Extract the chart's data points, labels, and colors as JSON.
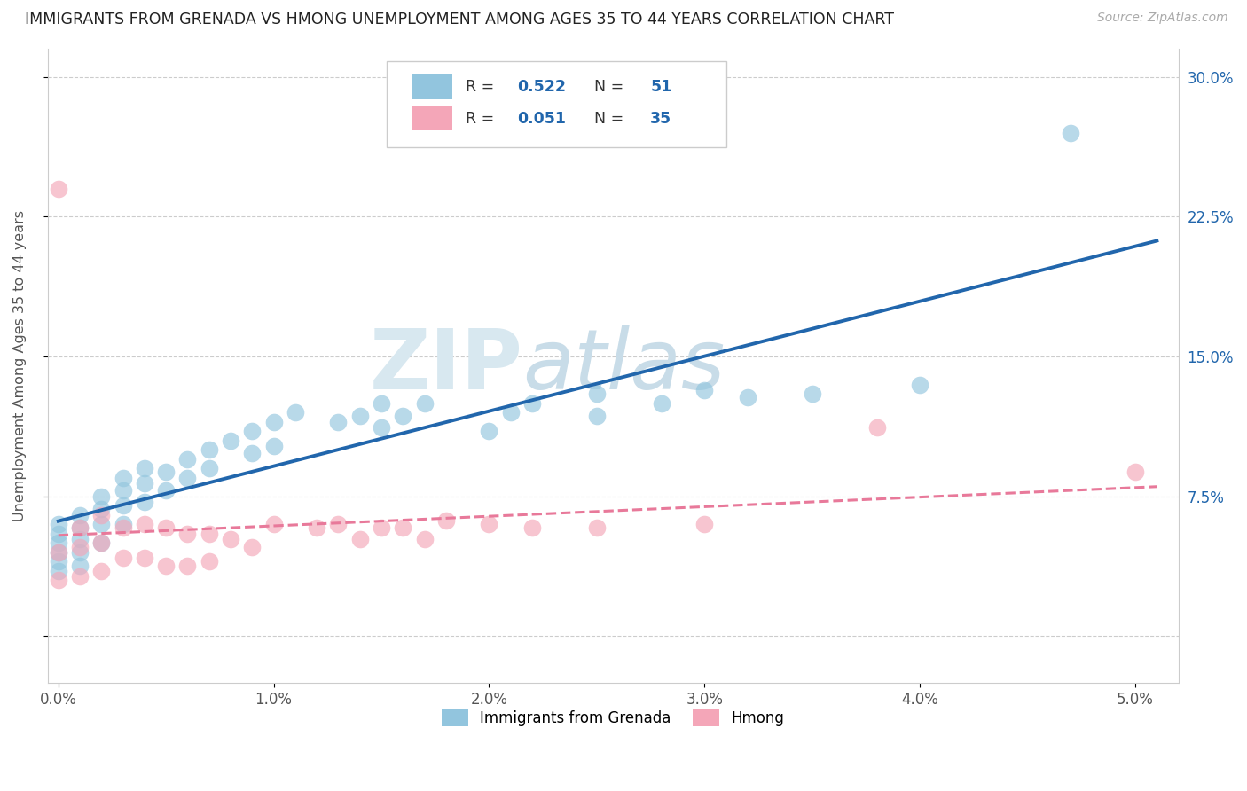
{
  "title": "IMMIGRANTS FROM GRENADA VS HMONG UNEMPLOYMENT AMONG AGES 35 TO 44 YEARS CORRELATION CHART",
  "source": "Source: ZipAtlas.com",
  "ylabel": "Unemployment Among Ages 35 to 44 years",
  "xlim": [
    -0.0005,
    0.052
  ],
  "ylim": [
    -0.025,
    0.315
  ],
  "xticks": [
    0.0,
    0.01,
    0.02,
    0.03,
    0.04,
    0.05
  ],
  "xticklabels": [
    "0.0%",
    "1.0%",
    "2.0%",
    "3.0%",
    "4.0%",
    "5.0%"
  ],
  "yticks": [
    0.0,
    0.075,
    0.15,
    0.225,
    0.3
  ],
  "yticklabels_right": [
    "",
    "7.5%",
    "15.0%",
    "22.5%",
    "30.0%"
  ],
  "grenada_color": "#92c5de",
  "hmong_color": "#f4a6b8",
  "trend_grenada_color": "#2166ac",
  "trend_hmong_color": "#e8799a",
  "legend_R_grenada": "0.522",
  "legend_N_grenada": "51",
  "legend_R_hmong": "0.051",
  "legend_N_hmong": "35",
  "watermark_ZIP": "ZIP",
  "watermark_atlas": "atlas",
  "background_color": "#ffffff",
  "grid_color": "#cccccc",
  "grenada_x": [
    0.0,
    0.0,
    0.0,
    0.0,
    0.0,
    0.0,
    0.001,
    0.001,
    0.001,
    0.001,
    0.001,
    0.002,
    0.002,
    0.002,
    0.002,
    0.003,
    0.003,
    0.003,
    0.003,
    0.004,
    0.004,
    0.004,
    0.005,
    0.005,
    0.006,
    0.006,
    0.007,
    0.007,
    0.008,
    0.009,
    0.009,
    0.01,
    0.01,
    0.011,
    0.013,
    0.014,
    0.015,
    0.015,
    0.016,
    0.017,
    0.02,
    0.021,
    0.022,
    0.025,
    0.025,
    0.028,
    0.03,
    0.032,
    0.035,
    0.04,
    0.047
  ],
  "grenada_y": [
    0.055,
    0.06,
    0.05,
    0.045,
    0.04,
    0.035,
    0.065,
    0.058,
    0.052,
    0.045,
    0.038,
    0.075,
    0.068,
    0.06,
    0.05,
    0.085,
    0.078,
    0.07,
    0.06,
    0.09,
    0.082,
    0.072,
    0.088,
    0.078,
    0.095,
    0.085,
    0.1,
    0.09,
    0.105,
    0.11,
    0.098,
    0.115,
    0.102,
    0.12,
    0.115,
    0.118,
    0.112,
    0.125,
    0.118,
    0.125,
    0.11,
    0.12,
    0.125,
    0.118,
    0.13,
    0.125,
    0.132,
    0.128,
    0.13,
    0.135,
    0.27
  ],
  "hmong_x": [
    0.0,
    0.0,
    0.0,
    0.001,
    0.001,
    0.001,
    0.002,
    0.002,
    0.002,
    0.003,
    0.003,
    0.004,
    0.004,
    0.005,
    0.005,
    0.006,
    0.006,
    0.007,
    0.007,
    0.008,
    0.009,
    0.01,
    0.012,
    0.013,
    0.014,
    0.015,
    0.016,
    0.017,
    0.018,
    0.02,
    0.022,
    0.025,
    0.03,
    0.038,
    0.05
  ],
  "hmong_y": [
    0.24,
    0.045,
    0.03,
    0.058,
    0.048,
    0.032,
    0.065,
    0.05,
    0.035,
    0.058,
    0.042,
    0.06,
    0.042,
    0.058,
    0.038,
    0.055,
    0.038,
    0.055,
    0.04,
    0.052,
    0.048,
    0.06,
    0.058,
    0.06,
    0.052,
    0.058,
    0.058,
    0.052,
    0.062,
    0.06,
    0.058,
    0.058,
    0.06,
    0.112,
    0.088
  ]
}
